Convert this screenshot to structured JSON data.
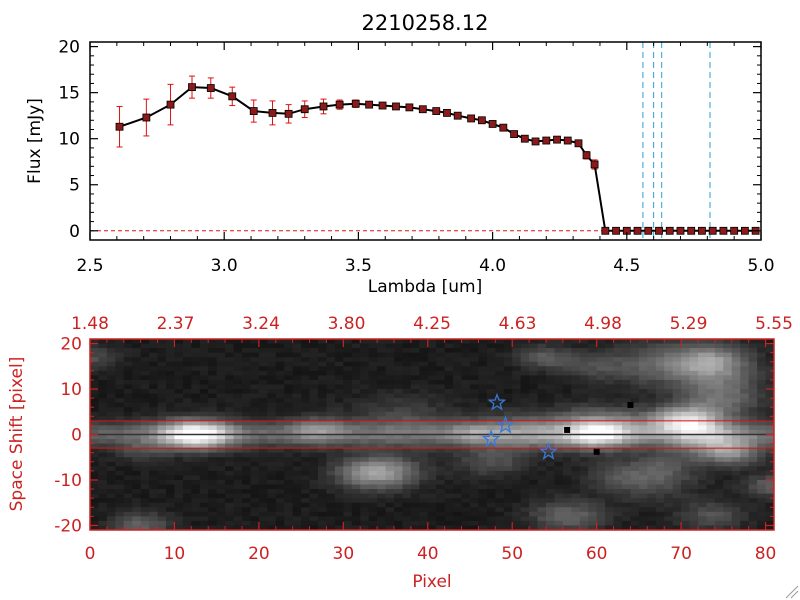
{
  "title": "2210258.12",
  "chart_data": [
    {
      "type": "line",
      "title": "2210258.12",
      "xlabel": "Lambda [um]",
      "ylabel": "Flux [mJy]",
      "xlim": [
        2.5,
        5.0
      ],
      "ylim": [
        -1,
        20.5
      ],
      "xticks": [
        "2.5",
        "3.0",
        "3.5",
        "4.0",
        "4.5",
        "5.0"
      ],
      "xtick_values": [
        2.5,
        3.0,
        3.5,
        4.0,
        4.5,
        5.0
      ],
      "yticks": [
        "0",
        "5",
        "10",
        "15",
        "20"
      ],
      "ytick_values": [
        0,
        5,
        10,
        15,
        20
      ],
      "marker_color": "#8B1A1A",
      "line_color": "#000000",
      "errorbar_color": "#dd1111",
      "dashed_line_color": "#2aa0d0",
      "dashed_lines_x": [
        4.56,
        4.6,
        4.63,
        4.81
      ],
      "zero_line_color": "#dd1111",
      "series": [
        {
          "x": [
            2.61,
            2.71,
            2.8,
            2.88,
            2.95,
            3.03,
            3.11,
            3.18,
            3.24,
            3.3,
            3.37,
            3.43,
            3.49,
            3.54,
            3.59,
            3.64,
            3.69,
            3.74,
            3.79,
            3.83,
            3.87,
            3.92,
            3.96,
            4.0,
            4.04,
            4.08,
            4.12,
            4.16,
            4.2,
            4.24,
            4.28,
            4.32,
            4.35,
            4.38,
            4.42,
            4.46,
            4.5,
            4.54,
            4.58,
            4.62,
            4.66,
            4.7,
            4.74,
            4.78,
            4.82,
            4.86,
            4.9,
            4.94,
            4.98
          ],
          "y": [
            11.3,
            12.3,
            13.7,
            15.6,
            15.5,
            14.6,
            13.0,
            12.8,
            12.7,
            13.2,
            13.5,
            13.7,
            13.8,
            13.7,
            13.6,
            13.5,
            13.4,
            13.2,
            13.0,
            12.8,
            12.5,
            12.2,
            12.0,
            11.6,
            11.2,
            10.5,
            10.0,
            9.7,
            9.8,
            9.9,
            9.8,
            9.5,
            8.2,
            7.2,
            0.0,
            0.0,
            0.0,
            0.0,
            0.0,
            0.0,
            0.0,
            0.0,
            0.0,
            0.0,
            0.0,
            0.0,
            0.0,
            0.0,
            0.0
          ],
          "yerr": [
            2.2,
            2.0,
            2.2,
            1.2,
            1.1,
            1.0,
            1.2,
            1.3,
            1.0,
            0.9,
            0.8,
            0.5,
            0.4,
            0.3,
            0.3,
            0.3,
            0.3,
            0.3,
            0.3,
            0.3,
            0.3,
            0.3,
            0.3,
            0.3,
            0.3,
            0.3,
            0.3,
            0.3,
            0.3,
            0.3,
            0.3,
            0.3,
            0.4,
            0.5,
            0.0,
            0.0,
            0.0,
            0.0,
            0.0,
            0.0,
            0.0,
            0.0,
            0.0,
            0.0,
            0.0,
            0.0,
            0.0,
            0.0,
            0.0
          ]
        }
      ]
    },
    {
      "type": "heatmap",
      "xlabel": "Pixel",
      "ylabel": "Space Shift [pixel]",
      "xlim": [
        0,
        81
      ],
      "ylim": [
        -21,
        21
      ],
      "xticks": [
        "0",
        "10",
        "20",
        "30",
        "40",
        "50",
        "60",
        "70",
        "80"
      ],
      "xtick_values": [
        0,
        10,
        20,
        30,
        40,
        50,
        60,
        70,
        80
      ],
      "yticks": [
        "-20",
        "-10",
        "0",
        "10",
        "20"
      ],
      "ytick_values": [
        -20,
        -10,
        0,
        10,
        20
      ],
      "top_ticks": [
        "1.48",
        "2.37",
        "3.24",
        "3.80",
        "4.25",
        "4.63",
        "4.98",
        "5.29",
        "5.55"
      ],
      "axis_color": "#cc2222",
      "aperture_lines_y": [
        3,
        -3
      ],
      "aperture_line_color": "#dd1111",
      "star_color": "#3a78d8",
      "stars": [
        {
          "x": 48.2,
          "y": 7.0
        },
        {
          "x": 49.2,
          "y": 2.0
        },
        {
          "x": 47.5,
          "y": -1.0
        },
        {
          "x": 54.3,
          "y": -3.8
        }
      ],
      "dark_spots": [
        {
          "x": 56.5,
          "y": 1.0
        },
        {
          "x": 60.0,
          "y": -3.8
        },
        {
          "x": 64.0,
          "y": 6.5
        }
      ],
      "sources": [
        {
          "x": 12.5,
          "y": 0,
          "peak": 1.0
        },
        {
          "x": 70.5,
          "y": 3,
          "peak": 0.9
        }
      ]
    }
  ]
}
